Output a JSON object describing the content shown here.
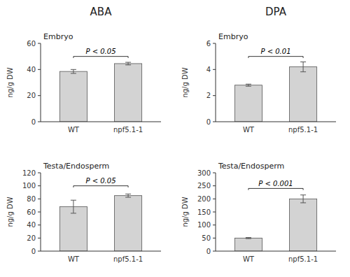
{
  "chart_data": [
    {
      "type": "bar",
      "title": "ABA",
      "subtitle": "Embryo",
      "categories": [
        "WT",
        "npf5.1-1"
      ],
      "values": [
        38.5,
        44.5
      ],
      "errors": [
        1.5,
        1.0
      ],
      "ylim": [
        0,
        60
      ],
      "yticks": [
        0,
        20,
        40,
        60
      ],
      "ylabel": "ng/g DW",
      "color": "#d3d3d3",
      "annotations": [
        {
          "text": "P < 0.05",
          "y": 51.5,
          "bracket_y": 50
        }
      ]
    },
    {
      "type": "bar",
      "title": "DPA",
      "subtitle": "Embryo",
      "categories": [
        "WT",
        "npf5.1-1"
      ],
      "values": [
        2.8,
        4.2
      ],
      "errors": [
        0.08,
        0.38
      ],
      "ylim": [
        0,
        6
      ],
      "yticks": [
        0,
        2,
        4,
        6
      ],
      "ylabel": "ng/g DW",
      "color": "#d3d3d3",
      "annotations": [
        {
          "text": "P < 0.01",
          "y": 5.12,
          "bracket_y": 5.0
        }
      ]
    },
    {
      "type": "bar",
      "subtitle": "Testa/Endosperm",
      "categories": [
        "WT",
        "npf5.1-1"
      ],
      "values": [
        68.0,
        85.0
      ],
      "errors": [
        10.0,
        2.5
      ],
      "ylim": [
        0,
        120
      ],
      "yticks": [
        0,
        20,
        40,
        60,
        80,
        100,
        120
      ],
      "ylabel": "ng/g DW",
      "color": "#d3d3d3",
      "annotations": [
        {
          "text": "P < 0.05",
          "y": 102.5,
          "bracket_y": 100
        }
      ]
    },
    {
      "type": "bar",
      "subtitle": "Testa/Endosperm",
      "categories": [
        "WT",
        "npf5.1-1"
      ],
      "values": [
        50.0,
        200.0
      ],
      "errors": [
        2.0,
        15.0
      ],
      "ylim": [
        0,
        300
      ],
      "yticks": [
        0,
        50,
        100,
        150,
        200,
        250,
        300
      ],
      "ylabel": "ng/g DW",
      "color": "#d3d3d3",
      "annotations": [
        {
          "text": "P < 0.001",
          "y": 246,
          "bracket_y": 240
        }
      ]
    }
  ]
}
